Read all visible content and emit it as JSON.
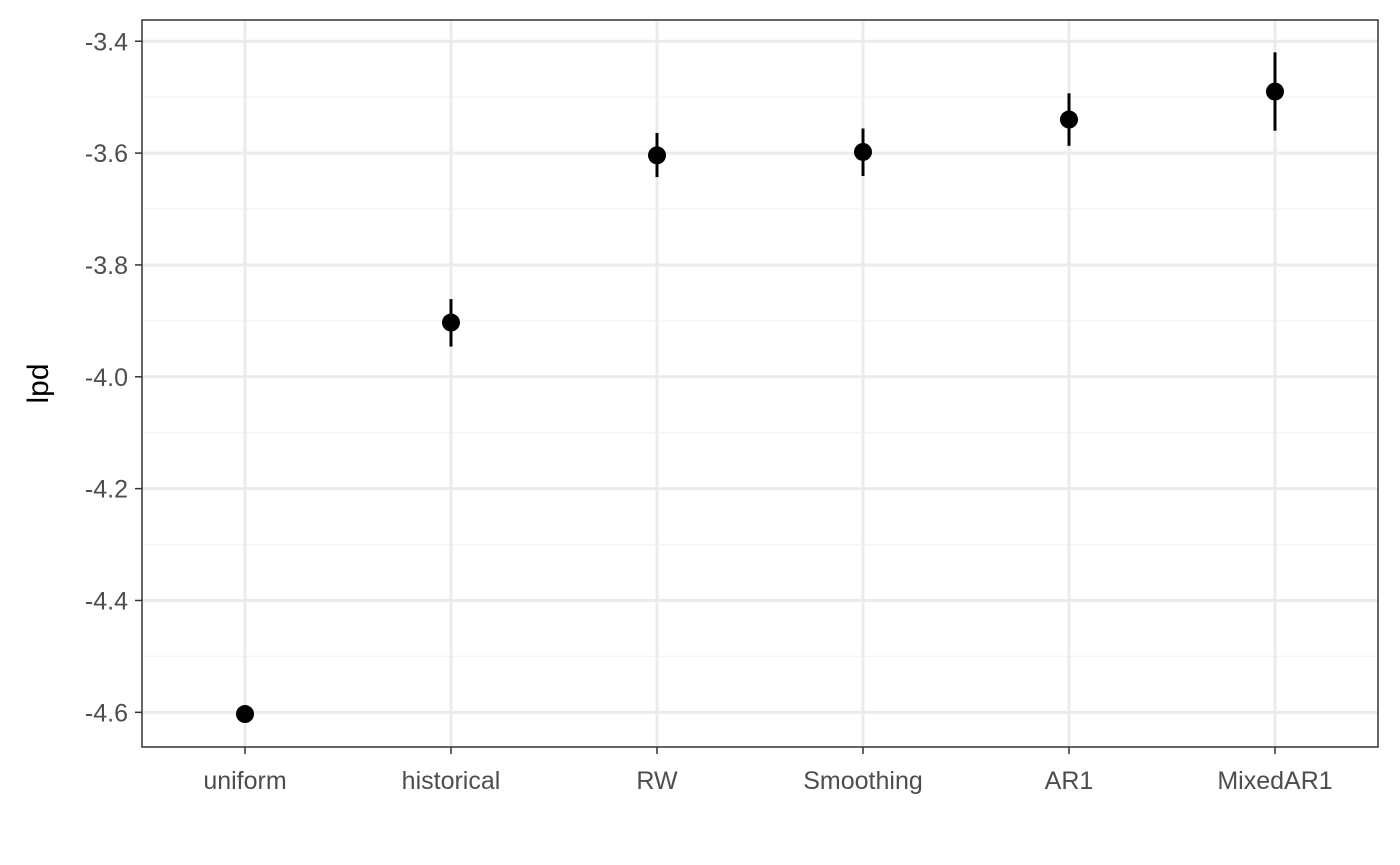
{
  "chart_data": {
    "type": "scatter",
    "categories": [
      "uniform",
      "historical",
      "RW",
      "Smoothing",
      "AR1",
      "MixedAR1"
    ],
    "values": [
      -4.603,
      -3.903,
      -3.604,
      -3.598,
      -3.54,
      -3.49
    ],
    "error_low": [
      -4.603,
      -3.946,
      -3.643,
      -3.641,
      -3.587,
      -3.56
    ],
    "error_high": [
      -4.603,
      -3.861,
      -3.564,
      -3.556,
      -3.493,
      -3.42
    ],
    "title": "",
    "xlabel": "",
    "ylabel": "lpd",
    "ylim": [
      -4.662,
      -3.362
    ],
    "y_ticks": [
      "-3.4",
      "-3.6",
      "-3.8",
      "-4.0",
      "-4.2",
      "-4.4",
      "-4.6"
    ],
    "y_tick_values": [
      -3.4,
      -3.6,
      -3.8,
      -4.0,
      -4.2,
      -4.4,
      -4.6
    ],
    "grid": true,
    "legend": "none",
    "colors": {
      "point": "#000000",
      "grid_major": "#ebebeb",
      "grid_minor": "#f4f4f4",
      "panel_border": "#333333",
      "tick_text": "#4d4d4d"
    }
  }
}
